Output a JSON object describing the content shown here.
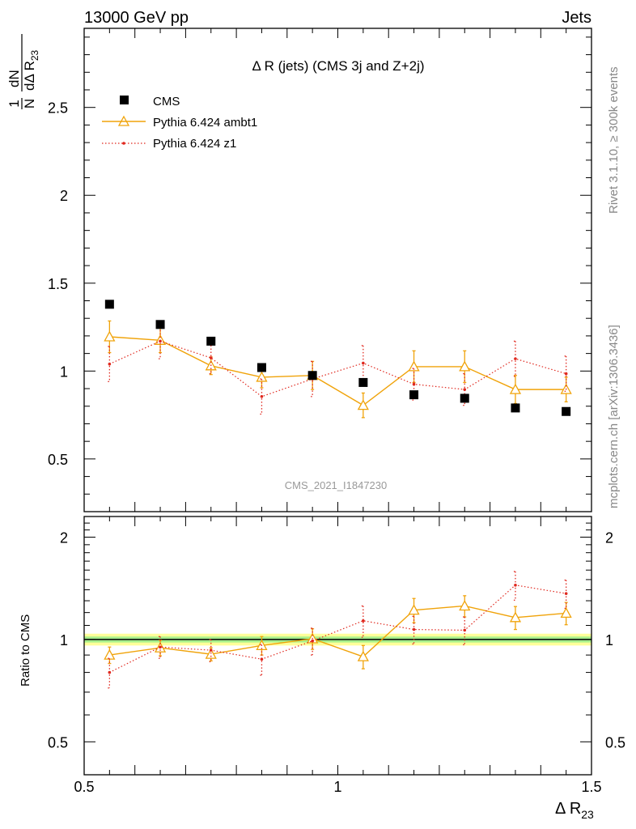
{
  "header": {
    "left": "13000 GeV pp",
    "right": "Jets",
    "analysis_id": "CMS_2021_I1847230",
    "side_top": "Rivet 3.1.10, ≥ 300k events",
    "side_bottom": "mcplots.cern.ch [arXiv:1306.3436]"
  },
  "chart_data": {
    "type": "scatter",
    "title": "Δ R (jets) (CMS 3j and Z+2j)",
    "xlabel": {
      "main": "Δ R",
      "sub": "23"
    },
    "ylabel": {
      "one": "1",
      "N": "N",
      "dN": "dN",
      "dDR": "dΔ R",
      "sub": "23"
    },
    "ratio_ylabel": "Ratio to CMS",
    "xlim": [
      0.5,
      1.5
    ],
    "ylim": [
      0.2,
      2.95
    ],
    "ratio_ylim": [
      0.4,
      2.3
    ],
    "x_ticks": [
      "0.5",
      "1",
      "1.5"
    ],
    "y_ticks": [
      "0.5",
      "1",
      "1.5",
      "2",
      "2.5"
    ],
    "ratio_y_ticks": [
      "0.5",
      "1",
      "2"
    ],
    "x": [
      0.55,
      0.65,
      0.75,
      0.85,
      0.95,
      1.05,
      1.15,
      1.25,
      1.35,
      1.45
    ],
    "legend_position": "top-left",
    "series": [
      {
        "name": "CMS",
        "style": "data",
        "color": "#000000",
        "values": [
          1.38,
          1.265,
          1.17,
          1.02,
          0.975,
          0.935,
          0.865,
          0.845,
          0.79,
          0.77
        ]
      },
      {
        "name": "Pythia 6.424 ambt1",
        "style": "solid-triangle",
        "color": "#f0a30a",
        "values": [
          1.195,
          1.175,
          1.03,
          0.965,
          0.975,
          0.805,
          1.025,
          1.025,
          0.895,
          0.895
        ],
        "errors": [
          0.09,
          0.07,
          0.05,
          0.06,
          0.08,
          0.07,
          0.09,
          0.09,
          0.08,
          0.07
        ],
        "ratio": [
          0.9,
          0.945,
          0.905,
          0.96,
          1.005,
          0.89,
          1.22,
          1.255,
          1.16,
          1.195
        ],
        "ratio_errors": [
          0.05,
          0.05,
          0.04,
          0.06,
          0.07,
          0.07,
          0.1,
          0.09,
          0.09,
          0.09
        ]
      },
      {
        "name": "Pythia 6.424 z1",
        "style": "dotted-dot",
        "color": "#e0281e",
        "values": [
          1.04,
          1.17,
          1.075,
          0.855,
          0.955,
          1.045,
          0.925,
          0.895,
          1.07,
          0.985
        ],
        "errors": [
          0.1,
          0.1,
          0.09,
          0.1,
          0.1,
          0.1,
          0.09,
          0.09,
          0.1,
          0.1
        ],
        "ratio": [
          0.8,
          0.95,
          0.93,
          0.875,
          0.99,
          1.135,
          1.07,
          1.065,
          1.445,
          1.365
        ],
        "ratio_errors": [
          0.08,
          0.07,
          0.07,
          0.09,
          0.09,
          0.12,
          0.1,
          0.1,
          0.14,
          0.13
        ]
      }
    ],
    "ratio_band": {
      "center": 1.0,
      "inner": 0.02,
      "outer": 0.04,
      "inner_color": "#a8f08c",
      "outer_color": "#ffff9a"
    }
  }
}
